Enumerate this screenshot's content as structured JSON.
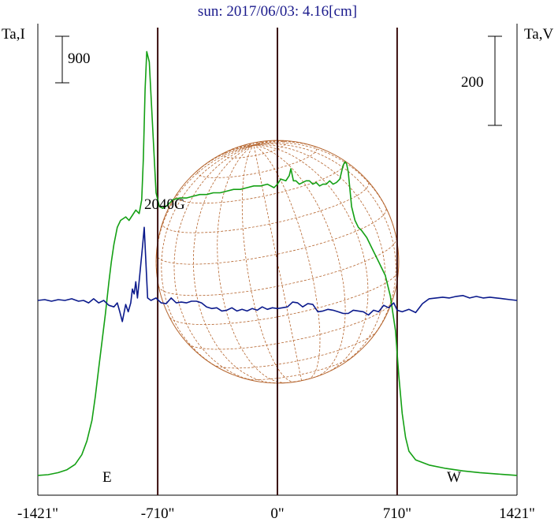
{
  "chart_data": {
    "type": "line",
    "title": "sun: 2017/06/03: 4.16[cm]",
    "left_axis_label": "Ta,I",
    "right_axis_label": "Ta,V",
    "left_scale_bar": {
      "label": "900",
      "value": 900
    },
    "right_scale_bar": {
      "label": "200",
      "value": 200
    },
    "x_ticks": [
      {
        "label": "-1421\"",
        "value": -1421
      },
      {
        "label": "-710\"",
        "value": -710
      },
      {
        "label": "0\"",
        "value": 0
      },
      {
        "label": "710\"",
        "value": 710
      },
      {
        "label": "1421\"",
        "value": 1421
      }
    ],
    "xlim": [
      -1421,
      1421
    ],
    "limb_markers": [
      {
        "label": "E",
        "value": -710,
        "side": "east"
      },
      {
        "label": "W",
        "value": 710,
        "side": "west"
      }
    ],
    "vertical_lines": [
      -710,
      0,
      710
    ],
    "annotations": [
      {
        "text": "2040G",
        "x": -950
      }
    ],
    "grid": false,
    "colors": {
      "title": "#1a1a8c",
      "intensity": "#14a014",
      "polarization": "#0b1a8c",
      "disk": "#b5652e",
      "vertical_lines": "#3a0e0e",
      "frame": "#000000"
    },
    "series": [
      {
        "name": "I",
        "color": "#14a014",
        "axis": "left",
        "x": [
          -1421,
          -1360,
          -1300,
          -1250,
          -1200,
          -1160,
          -1130,
          -1100,
          -1080,
          -1060,
          -1040,
          -1020,
          -1000,
          -985,
          -970,
          -950,
          -930,
          -900,
          -880,
          -860,
          -840,
          -820,
          -805,
          -795,
          -785,
          -775,
          -760,
          -740,
          -720,
          -700,
          -680,
          -650,
          -620,
          -580,
          -540,
          -500,
          -460,
          -420,
          -380,
          -340,
          -300,
          -260,
          -220,
          -180,
          -140,
          -100,
          -60,
          -20,
          0,
          20,
          50,
          70,
          80,
          95,
          110,
          130,
          150,
          170,
          190,
          210,
          230,
          250,
          270,
          290,
          310,
          330,
          350,
          370,
          390,
          400,
          410,
          420,
          430,
          440,
          460,
          480,
          500,
          530,
          560,
          600,
          640,
          670,
          700,
          720,
          740,
          760,
          780,
          820,
          900,
          1000,
          1100,
          1200,
          1300,
          1421
        ],
        "values": [
          300,
          320,
          380,
          460,
          620,
          900,
          1300,
          1900,
          2600,
          3400,
          4200,
          5000,
          5900,
          6500,
          7000,
          7500,
          7700,
          7800,
          7700,
          7850,
          8000,
          7900,
          8300,
          9500,
          11500,
          12600,
          12300,
          10400,
          8500,
          8100,
          8050,
          8150,
          8300,
          8350,
          8350,
          8400,
          8450,
          8450,
          8500,
          8500,
          8550,
          8600,
          8600,
          8650,
          8700,
          8700,
          8750,
          8650,
          8750,
          8900,
          8850,
          9000,
          9200,
          8850,
          8850,
          8750,
          8800,
          8850,
          8850,
          8750,
          8800,
          8700,
          8750,
          8750,
          8850,
          8750,
          8800,
          8900,
          9300,
          9400,
          9350,
          9100,
          8600,
          8100,
          7700,
          7500,
          7400,
          7200,
          6900,
          6500,
          6100,
          5500,
          4500,
          3200,
          2100,
          1400,
          1000,
          750,
          600,
          500,
          430,
          380,
          340,
          300
        ]
      },
      {
        "name": "V",
        "color": "#0b1a8c",
        "axis": "right",
        "x": [
          -1421,
          -1380,
          -1340,
          -1300,
          -1260,
          -1220,
          -1180,
          -1150,
          -1120,
          -1090,
          -1060,
          -1030,
          -1000,
          -970,
          -950,
          -935,
          -920,
          -900,
          -885,
          -870,
          -860,
          -850,
          -840,
          -830,
          -820,
          -810,
          -800,
          -790,
          -770,
          -750,
          -720,
          -690,
          -660,
          -630,
          -600,
          -570,
          -540,
          -510,
          -480,
          -450,
          -420,
          -390,
          -360,
          -330,
          -300,
          -270,
          -240,
          -210,
          -180,
          -150,
          -120,
          -90,
          -60,
          -30,
          0,
          30,
          60,
          90,
          120,
          150,
          180,
          210,
          240,
          270,
          300,
          330,
          360,
          390,
          420,
          450,
          480,
          510,
          540,
          570,
          600,
          630,
          660,
          690,
          710,
          740,
          780,
          820,
          860,
          900,
          940,
          980,
          1020,
          1060,
          1100,
          1140,
          1180,
          1220,
          1260,
          1300,
          1340,
          1380,
          1421
        ],
        "values": [
          0,
          1,
          -1,
          1,
          0,
          2,
          -1,
          0,
          -3,
          2,
          -3,
          0,
          -6,
          -8,
          -3,
          -14,
          -26,
          -5,
          -14,
          -3,
          14,
          8,
          23,
          3,
          24,
          45,
          67,
          90,
          3,
          0,
          3,
          -3,
          -4,
          3,
          -3,
          -2,
          -3,
          -1,
          -1,
          -3,
          -8,
          -10,
          -9,
          -13,
          -12,
          -9,
          -13,
          -11,
          -13,
          -10,
          -12,
          -8,
          -11,
          -9,
          -10,
          -9,
          -8,
          -2,
          -3,
          -8,
          -4,
          -5,
          -14,
          -13,
          -11,
          -12,
          -14,
          -16,
          -16,
          -12,
          -13,
          -14,
          -18,
          -12,
          -14,
          -6,
          -9,
          -3,
          -12,
          -14,
          -11,
          -15,
          -4,
          2,
          3,
          4,
          3,
          5,
          6,
          3,
          5,
          3,
          4,
          3,
          2,
          1,
          0
        ]
      }
    ]
  }
}
